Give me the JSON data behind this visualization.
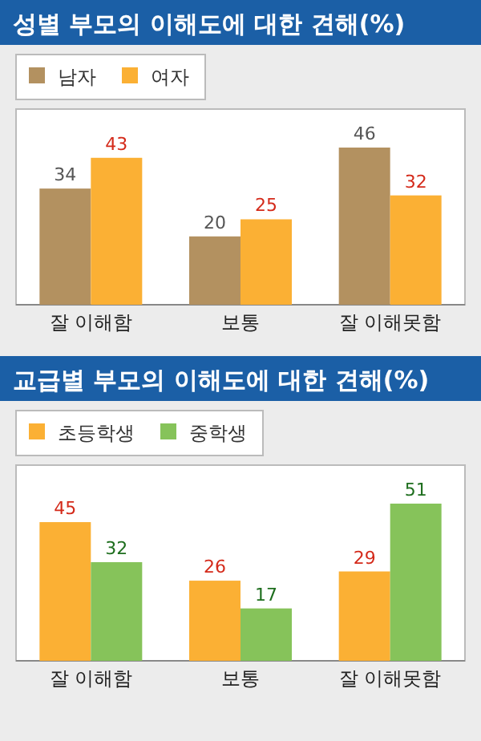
{
  "chart_data": [
    {
      "type": "bar",
      "title": "성별 부모의 이해도에 대한 견해(%)",
      "categories": [
        "잘 이해함",
        "보통",
        "잘 이해못함"
      ],
      "series": [
        {
          "name": "남자",
          "color": "#b39160",
          "values": [
            34,
            20,
            46
          ]
        },
        {
          "name": "여자",
          "color": "#fbb034",
          "values": [
            43,
            25,
            32
          ]
        }
      ],
      "data_labels": true,
      "legend": "top left"
    },
    {
      "type": "bar",
      "title": "교급별 부모의 이해도에 대한 견해(%)",
      "categories": [
        "잘 이해함",
        "보통",
        "잘 이해못함"
      ],
      "series": [
        {
          "name": "초등학생",
          "color": "#fbb034",
          "values": [
            45,
            26,
            29
          ]
        },
        {
          "name": "중학생",
          "color": "#86c35a",
          "values": [
            32,
            17,
            51
          ]
        }
      ],
      "data_labels": true,
      "legend": "top left"
    }
  ]
}
